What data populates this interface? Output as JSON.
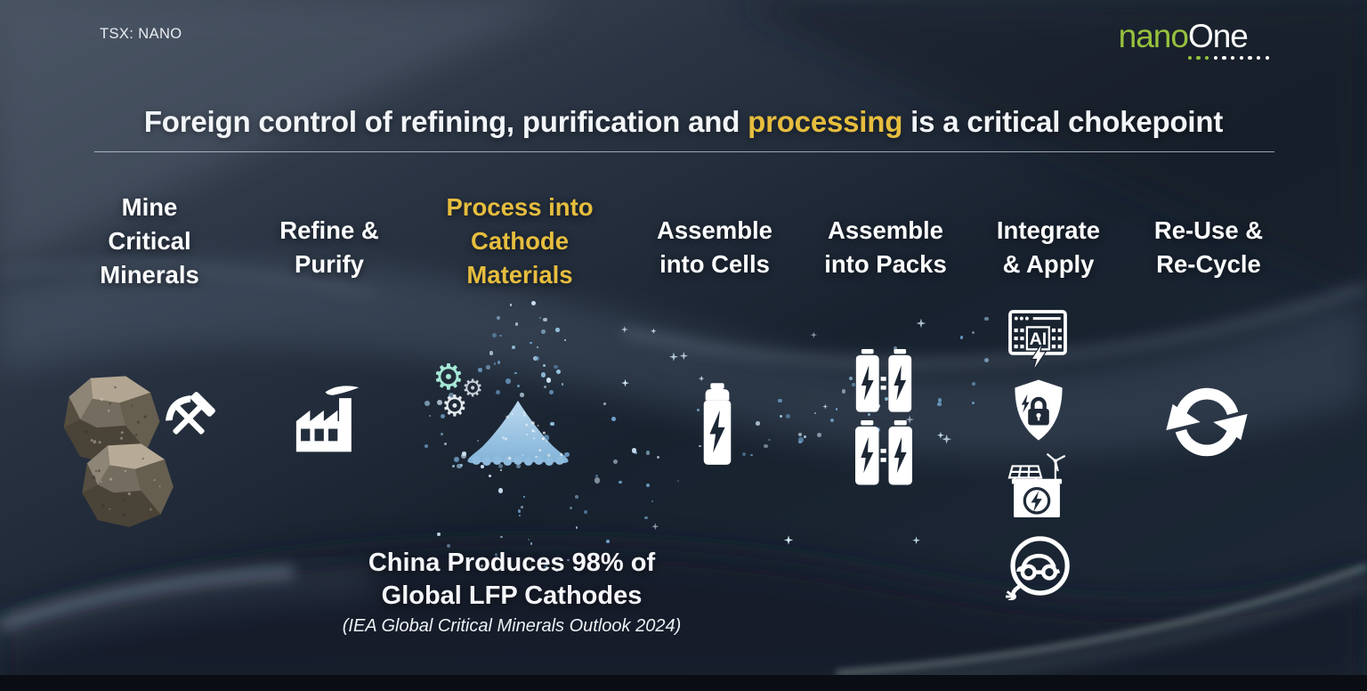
{
  "slide": {
    "ticker": "TSX: NANO",
    "logo": {
      "text_green": "nano",
      "text_white": "One",
      "dots_green": 3,
      "dots_white": 7
    },
    "title": {
      "pre": "Foreign control of refining, purification and ",
      "highlight": "processing",
      "post": " is a critical chokepoint"
    },
    "steps": [
      {
        "lines": [
          "Mine",
          "Critical",
          "Minerals"
        ],
        "highlighted": false,
        "icons": [
          "rocks-icon",
          "hammer-pick-icon"
        ]
      },
      {
        "lines": [
          "Refine &",
          "Purify"
        ],
        "highlighted": false,
        "icons": [
          "factory-icon"
        ]
      },
      {
        "lines": [
          "Process into",
          "Cathode",
          "Materials"
        ],
        "highlighted": true,
        "icons": [
          "gears-icon",
          "powder-pile-icon"
        ]
      },
      {
        "lines": [
          "Assemble",
          "into Cells"
        ],
        "highlighted": false,
        "icons": [
          "battery-cell-icon"
        ]
      },
      {
        "lines": [
          "Assemble",
          "into Packs"
        ],
        "highlighted": false,
        "icons": [
          "battery-pack-icon"
        ]
      },
      {
        "lines": [
          "Integrate",
          "& Apply"
        ],
        "highlighted": false,
        "icons": [
          "ai-server-icon",
          "security-shield-icon",
          "energy-storage-icon",
          "ev-charging-icon"
        ]
      },
      {
        "lines": [
          "Re-Use &",
          "Re-Cycle"
        ],
        "highlighted": false,
        "icons": [
          "recycle-icon"
        ]
      }
    ],
    "ai_label": "AI",
    "gear_glyph": "⚙",
    "callout": {
      "line1": "China Produces 98% of",
      "line2": "Global LFP Cathodes",
      "source": "(IEA Global Critical Minerals Outlook 2024)"
    },
    "colors": {
      "gold": "#e6bd3e",
      "logo_green": "#97c23d",
      "text_white": "#f4f6f8",
      "background_dark": "#1b2534",
      "particle_blue": "#9fcbea",
      "powder_blue": "#a9cce8"
    }
  }
}
